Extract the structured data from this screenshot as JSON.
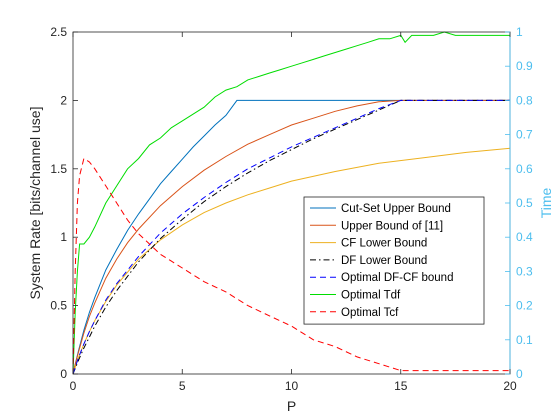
{
  "chart_data": {
    "type": "line",
    "xlabel": "P",
    "ylabel": "System Rate [bits/channel use]",
    "ylabel_right": "Time",
    "xlim": [
      0,
      20
    ],
    "ylim": [
      0,
      2.5
    ],
    "ylim_right": [
      0,
      1
    ],
    "xticks": [
      0,
      5,
      10,
      15,
      20
    ],
    "yticks": [
      0,
      0.5,
      1,
      1.5,
      2,
      2.5
    ],
    "yticks_right": [
      0,
      0.1,
      0.2,
      0.3,
      0.4,
      0.5,
      0.6,
      0.7,
      0.8,
      0.9,
      1
    ],
    "legend_position": "right-middle",
    "grid": false,
    "series": [
      {
        "name": "Cut-Set Upper Bound",
        "color": "#0072BD",
        "style": "solid",
        "axis": "left",
        "x": [
          0,
          0.1,
          0.25,
          0.5,
          0.75,
          1,
          1.5,
          2,
          2.5,
          3,
          3.5,
          4,
          4.5,
          5,
          5.5,
          6,
          6.5,
          7,
          7.5,
          8,
          10,
          12,
          14,
          16,
          18,
          20
        ],
        "y": [
          0,
          0.07,
          0.17,
          0.32,
          0.45,
          0.56,
          0.76,
          0.91,
          1.05,
          1.17,
          1.28,
          1.39,
          1.48,
          1.57,
          1.66,
          1.74,
          1.82,
          1.89,
          2.0,
          2.0,
          2.0,
          2.0,
          2.0,
          2.0,
          2.0,
          2.0
        ]
      },
      {
        "name": "Upper Bound of [11]",
        "color": "#D95319",
        "style": "solid",
        "axis": "left",
        "x": [
          0,
          0.1,
          0.25,
          0.5,
          0.75,
          1,
          1.5,
          2,
          2.5,
          3,
          4,
          5,
          6,
          7,
          8,
          9,
          10,
          11,
          12,
          13,
          14,
          15,
          16,
          18,
          20
        ],
        "y": [
          0,
          0.07,
          0.16,
          0.3,
          0.42,
          0.52,
          0.7,
          0.84,
          0.96,
          1.06,
          1.23,
          1.37,
          1.49,
          1.59,
          1.68,
          1.75,
          1.82,
          1.87,
          1.92,
          1.96,
          1.99,
          2.0,
          2.0,
          2.0,
          2.0
        ]
      },
      {
        "name": "CF Lower Bound",
        "color": "#EDB120",
        "style": "solid",
        "axis": "left",
        "x": [
          0,
          0.1,
          0.25,
          0.5,
          0.75,
          1,
          1.5,
          2,
          3,
          4,
          5,
          6,
          7,
          8,
          9,
          10,
          12,
          14,
          16,
          18,
          20
        ],
        "y": [
          0,
          0.05,
          0.12,
          0.22,
          0.31,
          0.39,
          0.53,
          0.65,
          0.84,
          0.98,
          1.09,
          1.18,
          1.25,
          1.31,
          1.36,
          1.41,
          1.48,
          1.54,
          1.58,
          1.62,
          1.65
        ]
      },
      {
        "name": "DF Lower Bound",
        "color": "#000000",
        "style": "dashdot",
        "axis": "left",
        "x": [
          0,
          0.1,
          0.25,
          0.5,
          0.75,
          1,
          1.5,
          2,
          3,
          4,
          5,
          6,
          7,
          8,
          9,
          10,
          11,
          12,
          13,
          14,
          15,
          16,
          18,
          20
        ],
        "y": [
          0,
          0.04,
          0.1,
          0.19,
          0.27,
          0.35,
          0.49,
          0.61,
          0.82,
          0.99,
          1.13,
          1.26,
          1.37,
          1.47,
          1.56,
          1.64,
          1.72,
          1.79,
          1.86,
          1.93,
          2.0,
          2.0,
          2.0,
          2.0
        ]
      },
      {
        "name": "Optimal DF-CF bound",
        "color": "#0000FF",
        "style": "dashed",
        "axis": "left",
        "x": [
          0,
          0.1,
          0.25,
          0.5,
          0.75,
          1,
          1.5,
          2,
          3,
          4,
          5,
          6,
          7,
          8,
          9,
          10,
          11,
          12,
          13,
          14,
          15,
          16,
          18,
          20
        ],
        "y": [
          0,
          0.05,
          0.12,
          0.22,
          0.31,
          0.39,
          0.54,
          0.66,
          0.86,
          1.03,
          1.17,
          1.29,
          1.4,
          1.5,
          1.58,
          1.66,
          1.73,
          1.8,
          1.87,
          1.94,
          2.0,
          2.0,
          2.0,
          2.0
        ]
      },
      {
        "name": "Optimal Tdf",
        "color": "#00DD00",
        "style": "solid",
        "axis": "right",
        "x": [
          0,
          0.1,
          0.2,
          0.3,
          0.5,
          0.75,
          1,
          1.5,
          2,
          2.5,
          3,
          3.5,
          4,
          4.5,
          5,
          5.5,
          6,
          6.5,
          7,
          7.5,
          8,
          8.5,
          9,
          9.5,
          10,
          10.5,
          11,
          11.5,
          12,
          12.5,
          13,
          13.5,
          14,
          14.5,
          15,
          15.2,
          15.5,
          16,
          16.5,
          17,
          17.5,
          18,
          18.5,
          19,
          19.5,
          20
        ],
        "y": [
          0,
          0.18,
          0.3,
          0.38,
          0.38,
          0.4,
          0.43,
          0.5,
          0.55,
          0.6,
          0.63,
          0.67,
          0.69,
          0.72,
          0.74,
          0.76,
          0.78,
          0.81,
          0.83,
          0.84,
          0.86,
          0.87,
          0.88,
          0.89,
          0.9,
          0.91,
          0.92,
          0.93,
          0.94,
          0.95,
          0.96,
          0.97,
          0.98,
          0.98,
          0.99,
          0.97,
          0.99,
          0.99,
          0.99,
          1.0,
          0.99,
          0.99,
          0.99,
          0.99,
          0.99,
          0.99
        ]
      },
      {
        "name": "Optimal Tcf",
        "color": "#FF0000",
        "style": "dashed",
        "axis": "right",
        "x": [
          0,
          0.1,
          0.2,
          0.3,
          0.5,
          0.75,
          1,
          1.5,
          2,
          2.5,
          3,
          3.5,
          4,
          4.5,
          5,
          6,
          7,
          8,
          9,
          10,
          11,
          12,
          13,
          14,
          15,
          15.5,
          16,
          17,
          18,
          19,
          20
        ],
        "y": [
          0,
          0.3,
          0.5,
          0.58,
          0.63,
          0.62,
          0.6,
          0.55,
          0.5,
          0.45,
          0.41,
          0.38,
          0.35,
          0.33,
          0.31,
          0.27,
          0.24,
          0.2,
          0.17,
          0.14,
          0.1,
          0.08,
          0.05,
          0.03,
          0.01,
          0.01,
          0.01,
          0.01,
          0.01,
          0.01,
          0.01
        ]
      }
    ]
  }
}
